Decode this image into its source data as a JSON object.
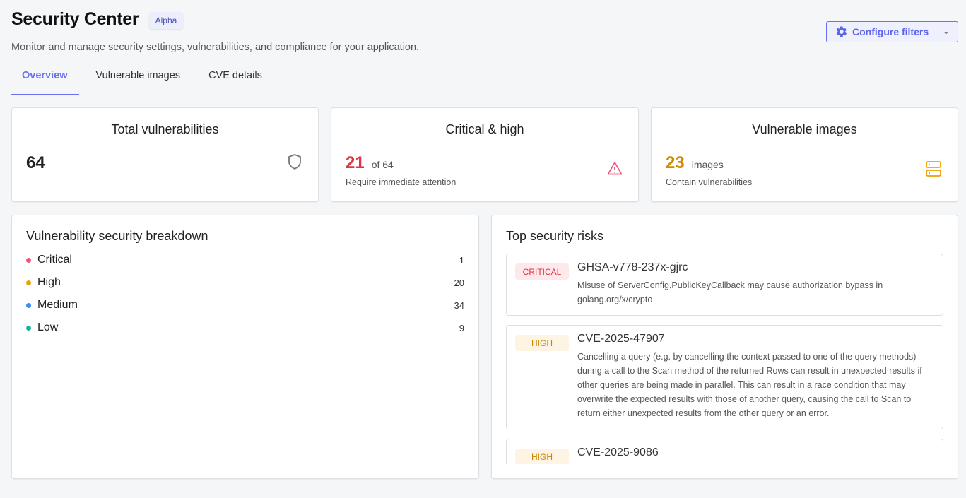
{
  "header": {
    "title": "Security Center",
    "badge": "Alpha",
    "subtitle": "Monitor and manage security settings, vulnerabilities, and compliance for your application.",
    "configure_label": "Configure filters"
  },
  "tabs": [
    {
      "label": "Overview",
      "active": true
    },
    {
      "label": "Vulnerable images"
    },
    {
      "label": "CVE details"
    }
  ],
  "stats": {
    "total": {
      "title": "Total vulnerabilities",
      "value": "64",
      "icon": "shield-icon"
    },
    "critical_high": {
      "title": "Critical & high",
      "value": "21",
      "of": "of 64",
      "sub": "Require immediate attention",
      "icon": "warning-icon",
      "color": "#dc3545"
    },
    "images": {
      "title": "Vulnerable images",
      "value": "23",
      "unit": "images",
      "sub": "Contain vulnerabilities",
      "icon": "server-icon",
      "color": "#d08a00"
    }
  },
  "breakdown": {
    "title": "Vulnerability security breakdown",
    "items": [
      {
        "label": "Critical",
        "count": "1",
        "color": "#f0557a"
      },
      {
        "label": "High",
        "count": "20",
        "color": "#f0a000"
      },
      {
        "label": "Medium",
        "count": "34",
        "color": "#3b8ff0"
      },
      {
        "label": "Low",
        "count": "9",
        "color": "#14b39a"
      }
    ]
  },
  "risks": {
    "title": "Top security risks",
    "items": [
      {
        "severity": "CRITICAL",
        "id": "GHSA-v778-237x-gjrc",
        "description": "Misuse of ServerConfig.PublicKeyCallback may cause authorization bypass in golang.org/x/crypto"
      },
      {
        "severity": "HIGH",
        "id": "CVE-2025-47907",
        "description": "Cancelling a query (e.g. by cancelling the context passed to one of the query methods) during a call to the Scan method of the returned Rows can result in unexpected results if other queries are being made in parallel. This can result in a race condition that may overwrite the expected results with those of another query, causing the call to Scan to return either unexpected results from the other query or an error."
      },
      {
        "severity": "HIGH",
        "id": "CVE-2025-9086",
        "description": ""
      }
    ]
  }
}
